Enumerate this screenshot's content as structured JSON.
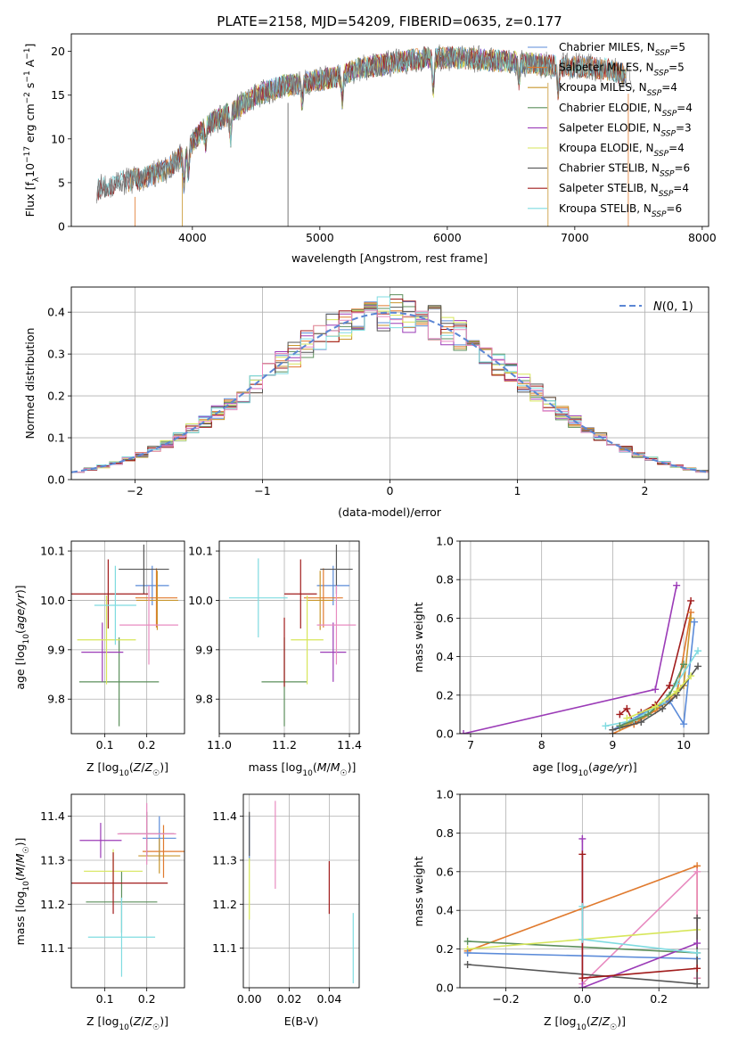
{
  "title": "PLATE=2158, MJD=54209, FIBERID=0635, z=0.177",
  "colors": {
    "Chabrier MILES": "#5b8bd9",
    "Salpeter MILES": "#e07a2e",
    "Kroupa MILES": "#c8962e",
    "Chabrier ELODIE": "#5c8f5c",
    "Salpeter ELODIE": "#9b3bb7",
    "Kroupa ELODIE": "#d7e65a",
    "Chabrier STELIB": "#555555",
    "Salpeter STELIB": "#a11c1c",
    "Kroupa STELIB": "#7fdbe0",
    "gauss": "#5b86d4",
    "pink": "#e88bc0"
  },
  "chart_data": [
    {
      "type": "line",
      "name": "spectrum",
      "xlabel": "wavelength [Angstrom, rest frame]",
      "ylabel": "Flux [f_λ10^-17 erg cm^-2 s^-1 A^-1]",
      "xlim": [
        3050,
        8050
      ],
      "ylim": [
        0,
        22
      ],
      "xticks": [
        4000,
        5000,
        6000,
        7000,
        8000
      ],
      "yticks": [
        0,
        5,
        10,
        15,
        20
      ],
      "grid": false,
      "legend_position": "right",
      "legend": [
        {
          "label": "Chabrier MILES, N",
          "sub": "SSP",
          "tail": "=5"
        },
        {
          "label": "Salpeter MILES, N",
          "sub": "SSP",
          "tail": "=5"
        },
        {
          "label": "Kroupa MILES, N",
          "sub": "SSP",
          "tail": "=4"
        },
        {
          "label": "Chabrier ELODIE, N",
          "sub": "SSP",
          "tail": "=4"
        },
        {
          "label": "Salpeter ELODIE, N",
          "sub": "SSP",
          "tail": "=3"
        },
        {
          "label": "Kroupa ELODIE, N",
          "sub": "SSP",
          "tail": "=4"
        },
        {
          "label": "Chabrier STELIB, N",
          "sub": "SSP",
          "tail": "=6"
        },
        {
          "label": "Salpeter STELIB, N",
          "sub": "SSP",
          "tail": "=4"
        },
        {
          "label": "Kroupa STELIB, N",
          "sub": "SSP",
          "tail": "=6"
        }
      ],
      "continuum": {
        "x": [
          3250,
          3400,
          3600,
          3800,
          3950,
          4100,
          4300,
          4500,
          4700,
          4900,
          5100,
          5300,
          5500,
          5700,
          5900,
          6100,
          6300,
          6500,
          6700,
          6900,
          7100,
          7300,
          7450
        ],
        "y": [
          4.2,
          5.0,
          5.5,
          6.5,
          8.5,
          11.5,
          13.0,
          15.0,
          16.0,
          16.5,
          17.0,
          18.0,
          18.5,
          19.0,
          19.3,
          19.3,
          19.0,
          18.8,
          18.5,
          18.3,
          18.2,
          17.8,
          17.0
        ]
      },
      "model_ranges": [
        {
          "name": "MILES",
          "x": [
            3500,
            7400
          ]
        },
        {
          "name": "ELODIE",
          "x": [
            3900,
            6800
          ]
        },
        {
          "name": "STELIB",
          "x": [
            3250,
            7400
          ]
        }
      ]
    },
    {
      "type": "area",
      "name": "residual histogram",
      "xlabel": "(data-model)/error",
      "ylabel": "Normed distribution",
      "xlim": [
        -2.5,
        2.5
      ],
      "ylim": [
        0,
        0.46
      ],
      "xticks": [
        -2,
        -1,
        0,
        1,
        2
      ],
      "yticks": [
        0.0,
        0.1,
        0.2,
        0.3,
        0.4
      ],
      "grid": true,
      "legend_position": "top-right",
      "legend": "N(0,1)",
      "bin_width": 0.1
    },
    {
      "type": "scatter",
      "name": "age vs Z",
      "xlabel": "Z [log10(Z/Z☉)]",
      "ylabel": "age [log10(age/yr)]",
      "xlim": [
        0.02,
        0.29
      ],
      "ylim": [
        9.73,
        10.12
      ],
      "xticks": [
        0.1,
        0.2
      ],
      "yticks": [
        9.8,
        9.9,
        10.0,
        10.1
      ],
      "grid": true,
      "points": [
        {
          "series": "Chabrier MILES",
          "x": 0.213,
          "xerr": 0.04,
          "y": 10.03,
          "yerr": 0.04
        },
        {
          "series": "Salpeter MILES",
          "x": 0.223,
          "xerr": 0.05,
          "y": 10.005,
          "yerr": 0.06
        },
        {
          "series": "Kroupa MILES",
          "x": 0.225,
          "xerr": 0.05,
          "y": 10.0,
          "yerr": 0.06
        },
        {
          "series": "Chabrier ELODIE",
          "x": 0.134,
          "xerr": 0.095,
          "y": 9.835,
          "yerr": 0.09
        },
        {
          "series": "Salpeter ELODIE",
          "x": 0.094,
          "xerr": 0.05,
          "y": 9.895,
          "yerr": 0.06
        },
        {
          "series": "Kroupa ELODIE",
          "x": 0.104,
          "xerr": 0.07,
          "y": 9.92,
          "yerr": 0.09
        },
        {
          "series": "Chabrier STELIB",
          "x": 0.193,
          "xerr": 0.06,
          "y": 10.063,
          "yerr": 0.05
        },
        {
          "series": "Salpeter STELIB",
          "x": 0.108,
          "xerr": 0.095,
          "y": 10.013,
          "yerr": 0.07
        },
        {
          "series": "Kroupa STELIB",
          "x": 0.125,
          "xerr": 0.05,
          "y": 9.99,
          "yerr": 0.08
        },
        {
          "series": "pink",
          "x": 0.205,
          "xerr": 0.07,
          "y": 9.95,
          "yerr": 0.08
        }
      ]
    },
    {
      "type": "scatter",
      "name": "age vs mass",
      "xlabel": "mass [log10(M/M☉)]",
      "ylabel": "",
      "xlim": [
        11.0,
        11.43
      ],
      "ylim": [
        9.73,
        10.12
      ],
      "xticks": [
        11.0,
        11.2,
        11.4
      ],
      "yticks": [
        9.8,
        9.9,
        10.0,
        10.1
      ],
      "grid": true,
      "points": [
        {
          "series": "Chabrier MILES",
          "x": 11.35,
          "xerr": 0.05,
          "y": 10.03,
          "yerr": 0.04
        },
        {
          "series": "Salpeter MILES",
          "x": 11.32,
          "xerr": 0.06,
          "y": 10.005,
          "yerr": 0.06
        },
        {
          "series": "Kroupa MILES",
          "x": 11.31,
          "xerr": 0.04,
          "y": 10.0,
          "yerr": 0.06
        },
        {
          "series": "Chabrier ELODIE",
          "x": 11.2,
          "xerr": 0.07,
          "y": 9.835,
          "yerr": 0.09
        },
        {
          "series": "Salpeter ELODIE",
          "x": 11.35,
          "xerr": 0.04,
          "y": 9.895,
          "yerr": 0.06
        },
        {
          "series": "Kroupa ELODIE",
          "x": 11.27,
          "xerr": 0.05,
          "y": 9.92,
          "yerr": 0.09
        },
        {
          "series": "Chabrier STELIB",
          "x": 11.36,
          "xerr": 0.05,
          "y": 10.063,
          "yerr": 0.05
        },
        {
          "series": "Salpeter STELIB",
          "x": 11.25,
          "xerr": 0.05,
          "y": 10.013,
          "yerr": 0.07
        },
        {
          "series": "Kroupa STELIB",
          "x": 11.12,
          "xerr": 0.09,
          "y": 10.005,
          "yerr": 0.08
        },
        {
          "series": "pink",
          "x": 11.36,
          "xerr": 0.06,
          "y": 9.95,
          "yerr": 0.08
        },
        {
          "series": "Salpeter STELIB",
          "x": 11.2,
          "xerr": 0.0,
          "y": 9.895,
          "yerr": 0.07
        }
      ]
    },
    {
      "type": "line",
      "name": "mass weight vs age",
      "xlabel": "age [log10(age/yr)]",
      "ylabel": "mass weight",
      "xlim": [
        6.85,
        10.35
      ],
      "ylim": [
        0.0,
        1.0
      ],
      "xticks": [
        7,
        8,
        9,
        10
      ],
      "yticks": [
        0.0,
        0.2,
        0.4,
        0.6,
        0.8,
        1.0
      ],
      "grid": true,
      "series": [
        {
          "name": "Salpeter ELODIE",
          "x": [
            6.9,
            9.6,
            9.9
          ],
          "y": [
            0.0,
            0.23,
            0.77
          ]
        },
        {
          "name": "Salpeter STELIB",
          "x": [
            9.1,
            9.2,
            9.3,
            9.4,
            9.6,
            9.8,
            10.1
          ],
          "y": [
            0.1,
            0.13,
            0.05,
            0.11,
            0.15,
            0.25,
            0.69
          ]
        },
        {
          "name": "Salpeter MILES",
          "x": [
            9.0,
            9.3,
            9.6,
            9.9,
            10.1
          ],
          "y": [
            0.0,
            0.05,
            0.12,
            0.2,
            0.63
          ]
        },
        {
          "name": "Kroupa MILES",
          "x": [
            9.1,
            9.4,
            9.7,
            10.0,
            10.1
          ],
          "y": [
            0.03,
            0.08,
            0.15,
            0.25,
            0.6
          ]
        },
        {
          "name": "Chabrier MILES",
          "x": [
            9.0,
            9.4,
            9.8,
            10.0,
            10.15
          ],
          "y": [
            0.02,
            0.1,
            0.17,
            0.05,
            0.58
          ]
        },
        {
          "name": "Kroupa STELIB",
          "x": [
            8.9,
            9.3,
            9.7,
            9.9,
            10.2
          ],
          "y": [
            0.04,
            0.07,
            0.16,
            0.26,
            0.43
          ]
        },
        {
          "name": "Chabrier STELIB",
          "x": [
            9.0,
            9.4,
            9.7,
            9.9,
            10.2
          ],
          "y": [
            0.02,
            0.06,
            0.13,
            0.2,
            0.35
          ]
        },
        {
          "name": "Chabrier ELODIE",
          "x": [
            9.1,
            9.5,
            9.8,
            10.0
          ],
          "y": [
            0.04,
            0.1,
            0.2,
            0.36
          ]
        },
        {
          "name": "Kroupa ELODIE",
          "x": [
            9.2,
            9.6,
            9.9,
            10.1
          ],
          "y": [
            0.08,
            0.14,
            0.22,
            0.3
          ]
        }
      ]
    },
    {
      "type": "scatter",
      "name": "mass vs Z",
      "xlabel": "Z [log10(Z/Z☉)]",
      "ylabel": "mass [log10(M/M☉)]",
      "xlim": [
        0.02,
        0.29
      ],
      "ylim": [
        11.01,
        11.45
      ],
      "xticks": [
        0.1,
        0.2
      ],
      "yticks": [
        11.1,
        11.2,
        11.3,
        11.4
      ],
      "grid": true,
      "points": [
        {
          "series": "Chabrier MILES",
          "x": 0.23,
          "xerr": 0.04,
          "y": 11.35,
          "yerr": 0.05
        },
        {
          "series": "Salpeter MILES",
          "x": 0.24,
          "xerr": 0.05,
          "y": 11.32,
          "yerr": 0.06
        },
        {
          "series": "Kroupa MILES",
          "x": 0.23,
          "xerr": 0.05,
          "y": 11.31,
          "yerr": 0.04
        },
        {
          "series": "Chabrier ELODIE",
          "x": 0.14,
          "xerr": 0.085,
          "y": 11.205,
          "yerr": 0.07
        },
        {
          "series": "Salpeter ELODIE",
          "x": 0.09,
          "xerr": 0.05,
          "y": 11.345,
          "yerr": 0.04
        },
        {
          "series": "Kroupa ELODIE",
          "x": 0.12,
          "xerr": 0.07,
          "y": 11.275,
          "yerr": 0.05
        },
        {
          "series": "Chabrier STELIB",
          "x": 0.2,
          "xerr": 0.065,
          "y": 11.36,
          "yerr": 0.05
        },
        {
          "series": "Salpeter STELIB",
          "x": 0.12,
          "xerr": 0.13,
          "y": 11.248,
          "yerr": 0.07
        },
        {
          "series": "Kroupa STELIB",
          "x": 0.14,
          "xerr": 0.08,
          "y": 11.125,
          "yerr": 0.09
        },
        {
          "series": "pink",
          "x": 0.2,
          "xerr": 0.07,
          "y": 11.36,
          "yerr": 0.07
        }
      ]
    },
    {
      "type": "scatter",
      "name": "mass vs E(B-V)",
      "xlabel": "E(B-V)",
      "ylabel": "",
      "xlim": [
        -0.003,
        0.055
      ],
      "ylim": [
        11.01,
        11.45
      ],
      "xticks": [
        0.0,
        0.02,
        0.04
      ],
      "yticks": [
        11.1,
        11.2,
        11.3,
        11.4
      ],
      "grid": true,
      "points": [
        {
          "series": "Chabrier MILES",
          "x": 0.0,
          "y": 11.35,
          "yerr": 0.05
        },
        {
          "series": "Chabrier STELIB",
          "x": 0.0,
          "y": 11.36,
          "yerr": 0.05
        },
        {
          "series": "Kroupa ELODIE",
          "x": 0.0,
          "y": 11.235,
          "yerr": 0.07
        },
        {
          "series": "pink",
          "x": 0.013,
          "y": 11.335,
          "yerr": 0.1
        },
        {
          "series": "Salpeter STELIB",
          "x": 0.04,
          "y": 11.238,
          "yerr": 0.06
        },
        {
          "series": "Kroupa STELIB",
          "x": 0.052,
          "y": 11.1,
          "yerr": 0.08
        }
      ]
    },
    {
      "type": "line",
      "name": "mass weight vs Z",
      "xlabel": "Z [log10(Z/Z☉)]",
      "ylabel": "mass weight",
      "xlim": [
        -0.32,
        0.33
      ],
      "ylim": [
        0.0,
        1.0
      ],
      "xticks": [
        -0.2,
        0.0,
        0.2
      ],
      "yticks": [
        0.0,
        0.2,
        0.4,
        0.6,
        0.8,
        1.0
      ],
      "grid": true,
      "series": [
        {
          "name": "Salpeter MILES",
          "x": [
            -0.3,
            0.3,
            0.3
          ],
          "y": [
            0.19,
            0.63,
            0.05
          ]
        },
        {
          "name": "pink",
          "x": [
            0.0,
            0.3,
            0.3
          ],
          "y": [
            0.02,
            0.6,
            0.05
          ]
        },
        {
          "name": "Chabrier ELODIE",
          "x": [
            -0.3,
            0.3
          ],
          "y": [
            0.24,
            0.18
          ]
        },
        {
          "name": "Kroupa ELODIE",
          "x": [
            -0.3,
            0.0,
            0.3
          ],
          "y": [
            0.2,
            0.25,
            0.3
          ]
        },
        {
          "name": "Chabrier MILES",
          "x": [
            -0.3,
            0.3
          ],
          "y": [
            0.18,
            0.15
          ]
        },
        {
          "name": "Chabrier STELIB",
          "x": [
            -0.3,
            0.3,
            0.3
          ],
          "y": [
            0.12,
            0.02,
            0.36
          ]
        },
        {
          "name": "Salpeter ELODIE",
          "x": [
            0.0,
            0.0,
            0.3
          ],
          "y": [
            0.77,
            0.0,
            0.23
          ]
        },
        {
          "name": "Salpeter STELIB",
          "x": [
            0.0,
            0.0,
            0.3
          ],
          "y": [
            0.69,
            0.05,
            0.1
          ]
        },
        {
          "name": "Kroupa STELIB",
          "x": [
            0.0,
            0.0,
            0.3
          ],
          "y": [
            0.42,
            0.25,
            0.18
          ]
        }
      ]
    }
  ]
}
